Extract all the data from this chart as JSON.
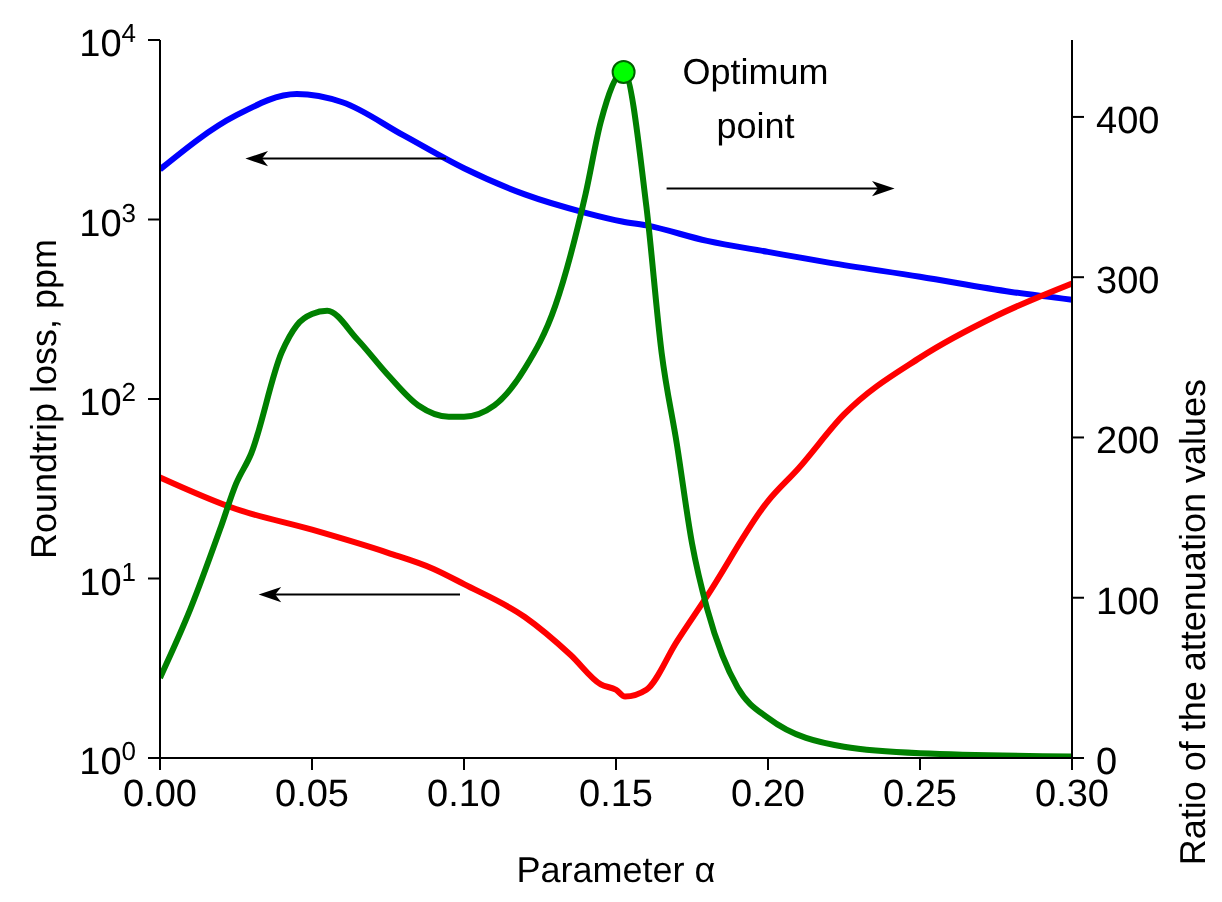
{
  "chart_data": {
    "type": "line",
    "xlabel": "Parameter α",
    "ylabel": "Roundtrip loss, ppm",
    "y2label": "Ratio of the attenuation values",
    "xlim": [
      0,
      0.3
    ],
    "xticks": [
      {
        "value": 0,
        "label": "0.00"
      },
      {
        "value": 0.05,
        "label": "0.05"
      },
      {
        "value": 0.1,
        "label": "0.10"
      },
      {
        "value": 0.15,
        "label": "0.15"
      },
      {
        "value": 0.2,
        "label": "0.20"
      },
      {
        "value": 0.25,
        "label": "0.25"
      },
      {
        "value": 0.3,
        "label": "0.30"
      }
    ],
    "log": "y",
    "ylim": [
      1,
      10000
    ],
    "yticks": [
      {
        "value": 1,
        "label": "10$^{0}$"
      },
      {
        "value": 10,
        "label": "10$^{1}$"
      },
      {
        "value": 100,
        "label": "10$^{2}$"
      },
      {
        "value": 1000,
        "label": "10$^{3}$"
      },
      {
        "value": 10000,
        "label": "10$^{4}$"
      }
    ],
    "y2lim": [
      0,
      448
    ],
    "y2ticks": [
      0,
      100,
      200,
      300,
      400
    ],
    "grid": false,
    "legend": false,
    "line_style": "solid",
    "marker": "none",
    "annotations": [
      "Optimum point"
    ],
    "series": [
      {
        "color": "#0000ff",
        "x": [
          0,
          0.025,
          0.045,
          0.06,
          0.08,
          0.1,
          0.12,
          0.14,
          0.152,
          0.16,
          0.18,
          0.2,
          0.22,
          0.25,
          0.28,
          0.3
        ],
        "values": [
          1900,
          3800,
          5000,
          4500,
          2950,
          1930,
          1380,
          1090,
          975,
          927,
          760,
          660,
          575,
          480,
          395,
          357
        ]
      },
      {
        "color": "#ff0000",
        "x": [
          0,
          0.025,
          0.05,
          0.075,
          0.09,
          0.1,
          0.12,
          0.135,
          0.145,
          0.15,
          0.153,
          0.16,
          0.17,
          0.18,
          0.2,
          0.21,
          0.225,
          0.25,
          0.275,
          0.3
        ],
        "values": [
          36.6,
          24.4,
          18.7,
          13.9,
          11.3,
          9.3,
          6.1,
          3.76,
          2.57,
          2.4,
          2.2,
          2.4,
          4.45,
          8,
          27,
          41,
          82,
          170,
          290,
          440
        ]
      },
      {
        "color": "#008000",
        "axis": "y2",
        "x": [
          0,
          0.01,
          0.02,
          0.025,
          0.03,
          0.04,
          0.045,
          0.05,
          0.055,
          0.065,
          0.075,
          0.085,
          0.095,
          0.1,
          0.11,
          0.12,
          0.13,
          0.14,
          0.145,
          0.1525,
          0.16,
          0.165,
          0.17,
          0.175,
          0.18,
          0.185,
          0.19,
          0.2,
          0.225,
          0.25,
          0.3
        ],
        "values": [
          50,
          93,
          144,
          171,
          190,
          253,
          270,
          277,
          279,
          261,
          239,
          220,
          213,
          213,
          220,
          243,
          282,
          352,
          397,
          428,
          344,
          253,
          196,
          134,
          93,
          64,
          44,
          25,
          7,
          3,
          1
        ]
      },
      {
        "type": "scatter",
        "color": "#00ff00",
        "axis": "y2",
        "marker": "circle",
        "x": [
          0.1525
        ],
        "values": [
          428
        ]
      }
    ]
  }
}
